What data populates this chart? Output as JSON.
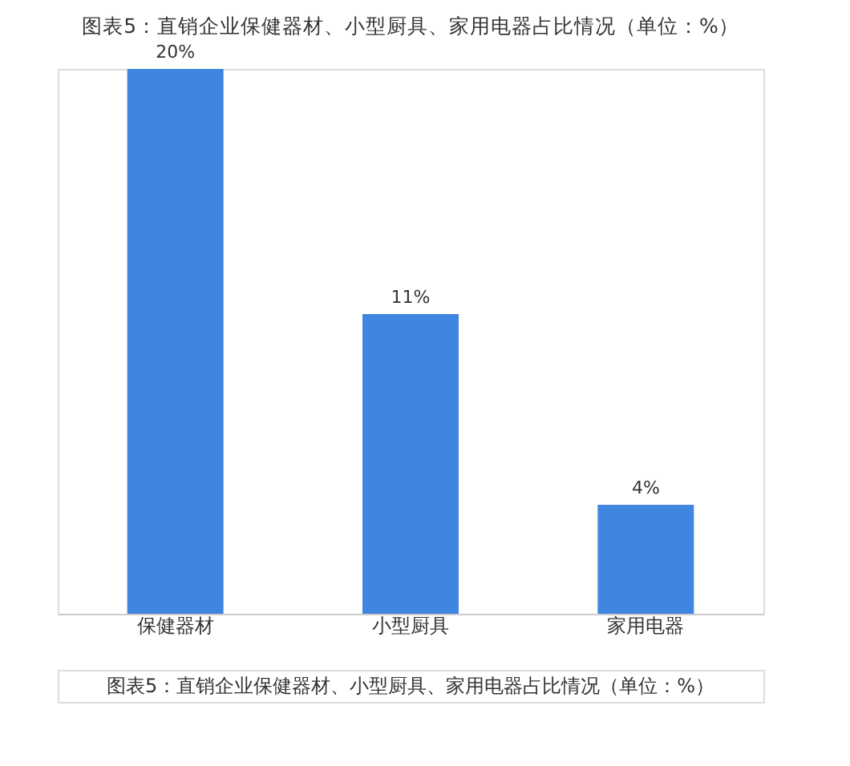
{
  "chart_data": {
    "type": "bar",
    "title": "图表5：直销企业保健器材、小型厨具、家用电器占比情况（单位：%）",
    "categories": [
      "保健器材",
      "小型厨具",
      "家用电器"
    ],
    "values": [
      20,
      11,
      4
    ],
    "value_labels": [
      "20%",
      "11%",
      "4%"
    ],
    "color": "#3f86e0",
    "grid": false,
    "annotations": [
      "图表5：直销企业保健器材、小型厨具、家用电器占比情况（单位：%）"
    ]
  }
}
